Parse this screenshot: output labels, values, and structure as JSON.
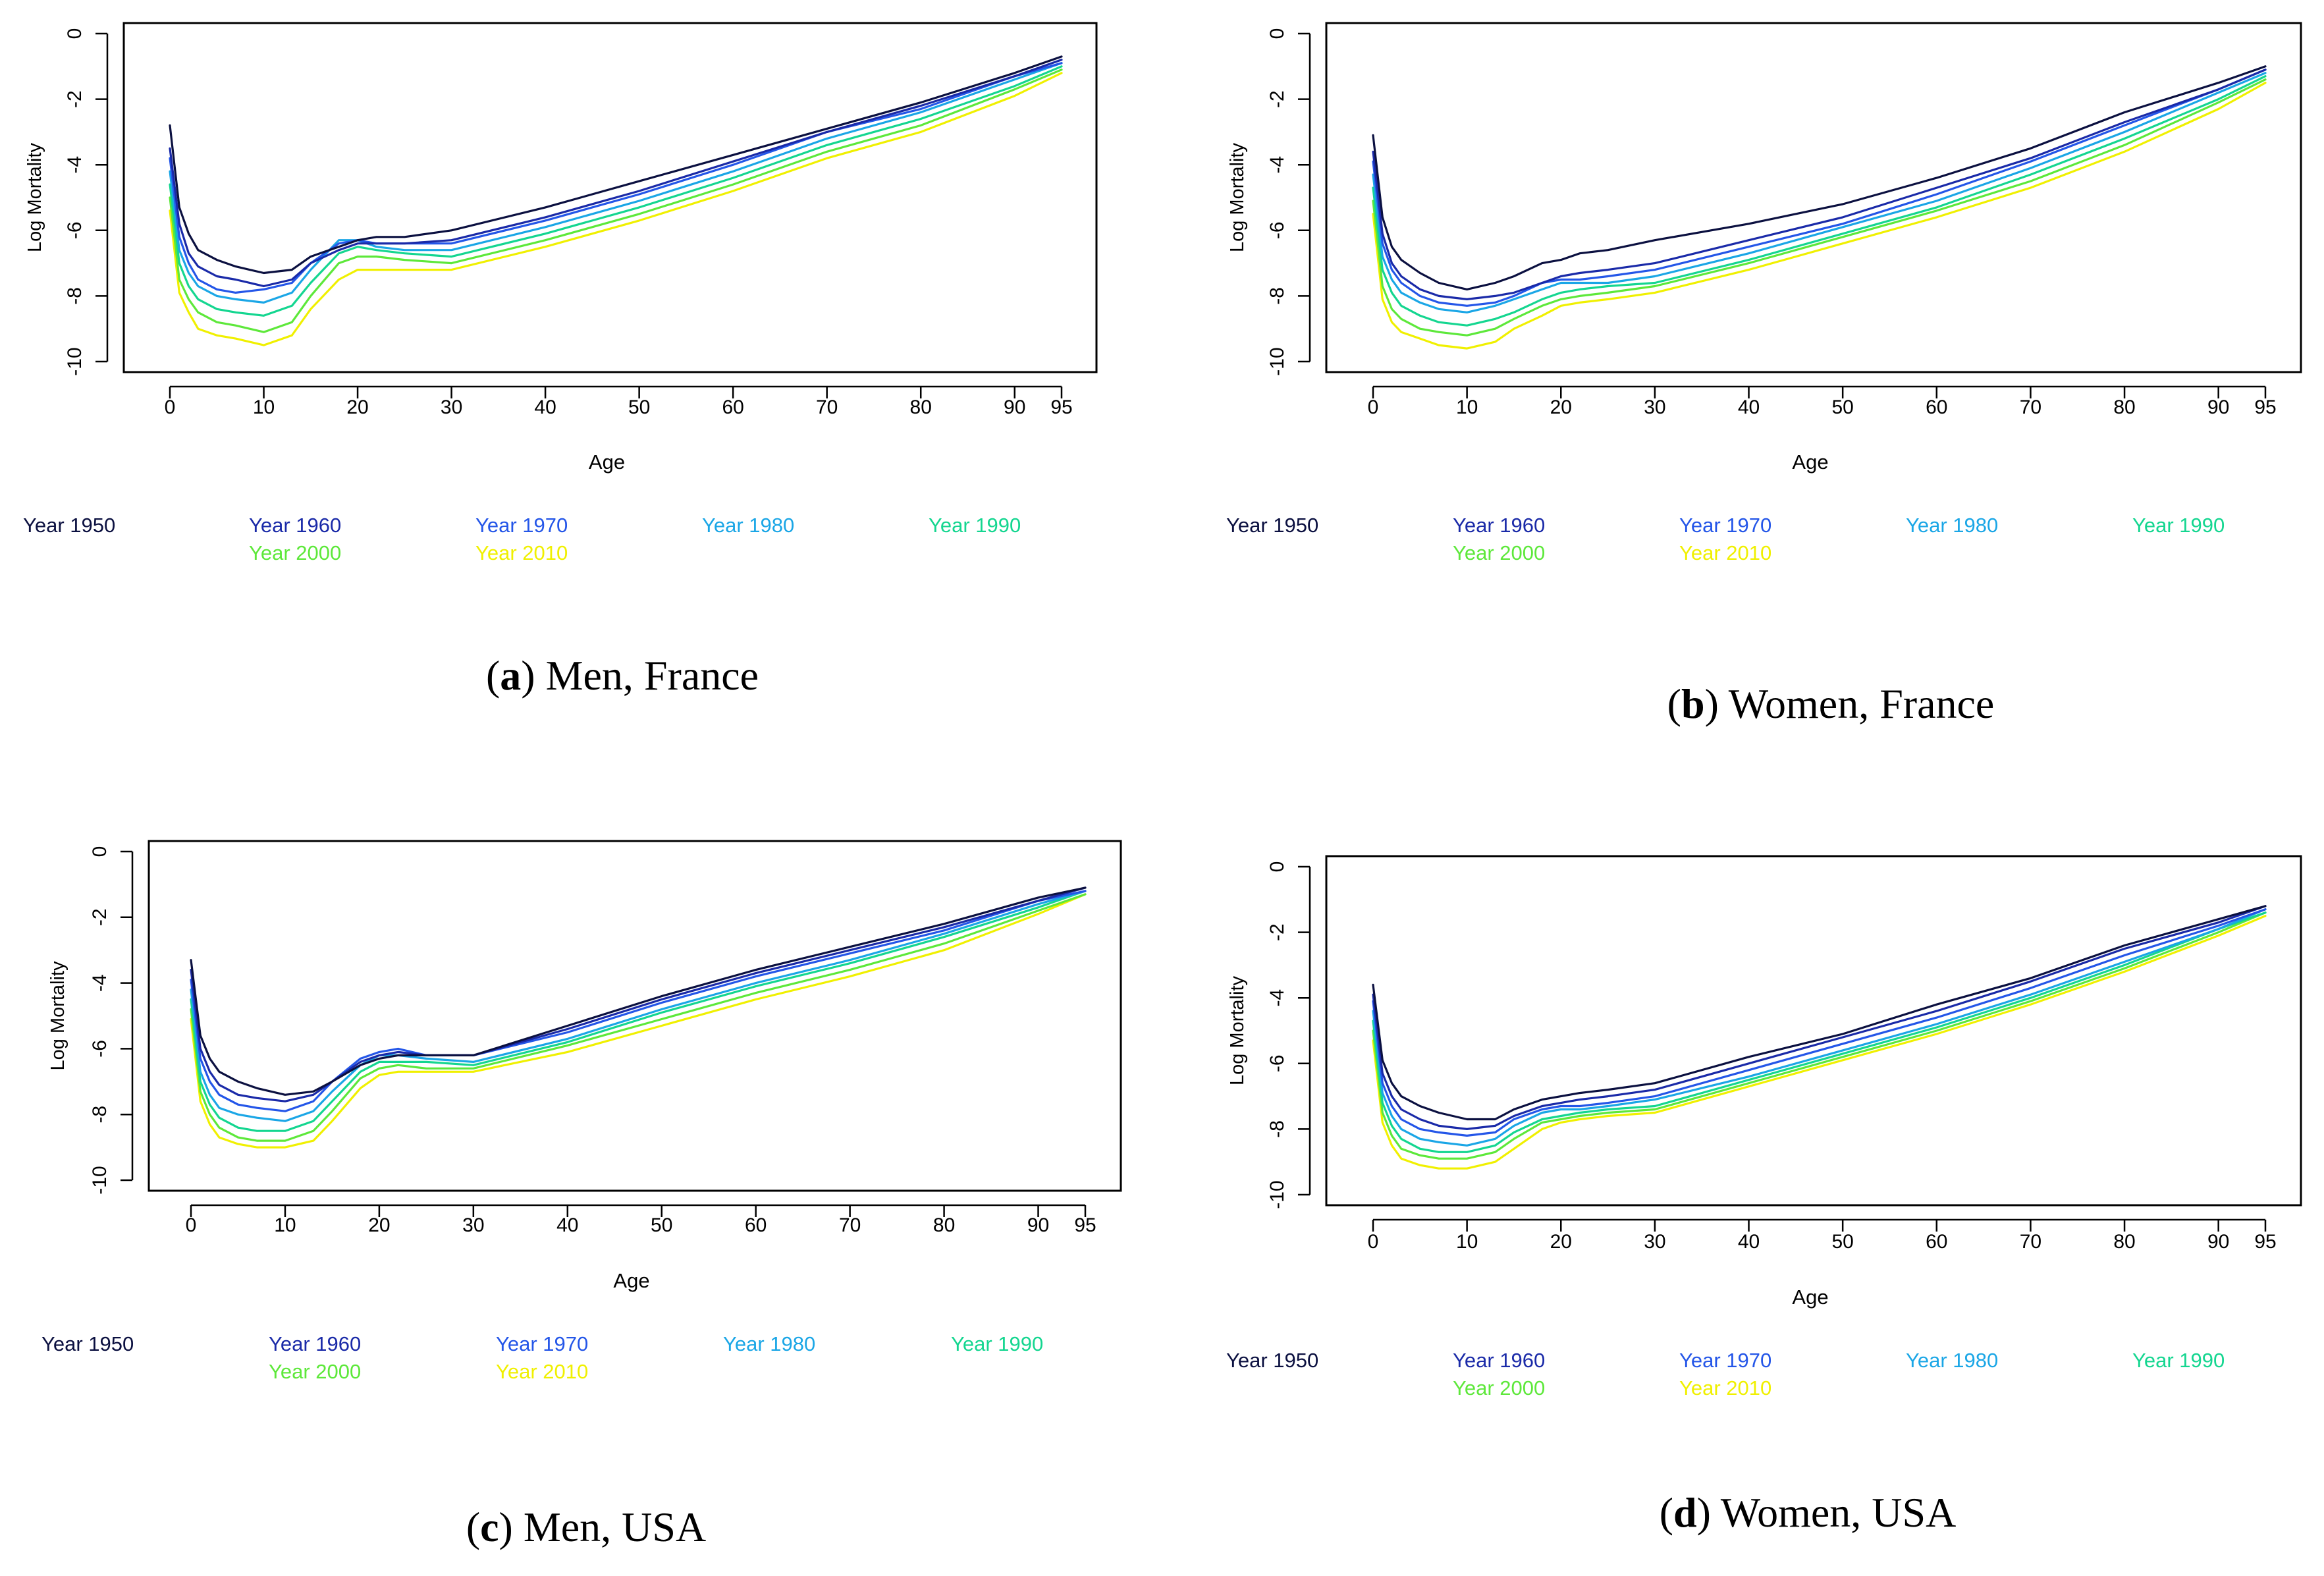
{
  "chart_data": [
    {
      "type": "line",
      "panel_letter": "a",
      "caption_text": "Men, France",
      "xlabel": "Age",
      "ylabel": "Log Mortality",
      "xlim": [
        0,
        95
      ],
      "ylim": [
        -10,
        0
      ],
      "xticks": [
        0,
        10,
        20,
        30,
        40,
        50,
        60,
        70,
        80,
        90,
        95
      ],
      "yticks": [
        0,
        -2,
        -4,
        -6,
        -8,
        -10
      ],
      "legend_position": "bottom",
      "x": [
        0,
        1,
        2,
        3,
        5,
        7,
        10,
        13,
        15,
        18,
        20,
        22,
        25,
        30,
        40,
        50,
        60,
        70,
        80,
        90,
        95
      ],
      "series": [
        {
          "name": "Year 1950",
          "color": "#0b1040",
          "values": [
            -2.8,
            -5.3,
            -6.1,
            -6.6,
            -6.9,
            -7.1,
            -7.3,
            -7.2,
            -6.8,
            -6.5,
            -6.3,
            -6.2,
            -6.2,
            -6.0,
            -5.3,
            -4.5,
            -3.7,
            -2.9,
            -2.1,
            -1.2,
            -0.7
          ]
        },
        {
          "name": "Year 1960",
          "color": "#1a2aa8",
          "values": [
            -3.5,
            -5.8,
            -6.7,
            -7.1,
            -7.4,
            -7.5,
            -7.7,
            -7.5,
            -7.0,
            -6.6,
            -6.4,
            -6.4,
            -6.4,
            -6.3,
            -5.6,
            -4.8,
            -3.9,
            -3.0,
            -2.2,
            -1.3,
            -0.8
          ]
        },
        {
          "name": "Year 1970",
          "color": "#2456e8",
          "values": [
            -3.8,
            -6.2,
            -7.0,
            -7.5,
            -7.8,
            -7.9,
            -7.8,
            -7.6,
            -7.0,
            -6.4,
            -6.3,
            -6.4,
            -6.4,
            -6.4,
            -5.7,
            -4.9,
            -4.0,
            -3.0,
            -2.3,
            -1.3,
            -0.9
          ]
        },
        {
          "name": "Year 1980",
          "color": "#1aa6e6",
          "values": [
            -4.2,
            -6.6,
            -7.3,
            -7.7,
            -8.0,
            -8.1,
            -8.2,
            -7.9,
            -7.2,
            -6.3,
            -6.3,
            -6.5,
            -6.6,
            -6.6,
            -5.9,
            -5.1,
            -4.2,
            -3.2,
            -2.4,
            -1.4,
            -0.9
          ]
        },
        {
          "name": "Year 1990",
          "color": "#14d690",
          "values": [
            -4.6,
            -7.0,
            -7.7,
            -8.1,
            -8.4,
            -8.5,
            -8.6,
            -8.3,
            -7.6,
            -6.7,
            -6.5,
            -6.6,
            -6.7,
            -6.8,
            -6.1,
            -5.3,
            -4.4,
            -3.4,
            -2.6,
            -1.6,
            -1.0
          ]
        },
        {
          "name": "Year 2000",
          "color": "#5de83a",
          "values": [
            -5.0,
            -7.5,
            -8.1,
            -8.5,
            -8.8,
            -8.9,
            -9.1,
            -8.8,
            -8.0,
            -7.0,
            -6.8,
            -6.8,
            -6.9,
            -7.0,
            -6.3,
            -5.5,
            -4.6,
            -3.6,
            -2.8,
            -1.7,
            -1.1
          ]
        },
        {
          "name": "Year 2010",
          "color": "#f0f000",
          "values": [
            -5.4,
            -7.9,
            -8.5,
            -9.0,
            -9.2,
            -9.3,
            -9.5,
            -9.2,
            -8.4,
            -7.5,
            -7.2,
            -7.2,
            -7.2,
            -7.2,
            -6.5,
            -5.7,
            -4.8,
            -3.8,
            -3.0,
            -1.9,
            -1.2
          ]
        }
      ]
    },
    {
      "type": "line",
      "panel_letter": "b",
      "caption_text": "Women, France",
      "xlabel": "Age",
      "ylabel": "Log Mortality",
      "xlim": [
        0,
        95
      ],
      "ylim": [
        -10,
        0
      ],
      "xticks": [
        0,
        10,
        20,
        30,
        40,
        50,
        60,
        70,
        80,
        90,
        95
      ],
      "yticks": [
        0,
        -2,
        -4,
        -6,
        -8,
        -10
      ],
      "legend_position": "bottom",
      "x": [
        0,
        1,
        2,
        3,
        5,
        7,
        10,
        13,
        15,
        18,
        20,
        22,
        25,
        30,
        40,
        50,
        60,
        70,
        80,
        90,
        95
      ],
      "series": [
        {
          "name": "Year 1950",
          "color": "#0b1040",
          "values": [
            -3.1,
            -5.6,
            -6.5,
            -6.9,
            -7.3,
            -7.6,
            -7.8,
            -7.6,
            -7.4,
            -7.0,
            -6.9,
            -6.7,
            -6.6,
            -6.3,
            -5.8,
            -5.2,
            -4.4,
            -3.5,
            -2.4,
            -1.5,
            -1.0
          ]
        },
        {
          "name": "Year 1960",
          "color": "#1a2aa8",
          "values": [
            -3.6,
            -6.1,
            -7.0,
            -7.4,
            -7.8,
            -8.0,
            -8.1,
            -8.0,
            -7.9,
            -7.6,
            -7.4,
            -7.3,
            -7.2,
            -7.0,
            -6.3,
            -5.6,
            -4.7,
            -3.8,
            -2.7,
            -1.7,
            -1.1
          ]
        },
        {
          "name": "Year 1970",
          "color": "#2456e8",
          "values": [
            -3.9,
            -6.4,
            -7.2,
            -7.6,
            -8.0,
            -8.2,
            -8.3,
            -8.2,
            -8.0,
            -7.6,
            -7.5,
            -7.5,
            -7.4,
            -7.2,
            -6.5,
            -5.8,
            -4.9,
            -3.9,
            -2.8,
            -1.7,
            -1.1
          ]
        },
        {
          "name": "Year 1980",
          "color": "#1aa6e6",
          "values": [
            -4.3,
            -6.8,
            -7.5,
            -7.9,
            -8.2,
            -8.4,
            -8.5,
            -8.3,
            -8.1,
            -7.8,
            -7.6,
            -7.6,
            -7.6,
            -7.4,
            -6.7,
            -5.9,
            -5.1,
            -4.1,
            -3.0,
            -1.8,
            -1.2
          ]
        },
        {
          "name": "Year 1990",
          "color": "#14d690",
          "values": [
            -4.7,
            -7.2,
            -7.9,
            -8.3,
            -8.6,
            -8.8,
            -8.9,
            -8.7,
            -8.5,
            -8.1,
            -7.9,
            -7.8,
            -7.7,
            -7.6,
            -6.9,
            -6.1,
            -5.3,
            -4.3,
            -3.2,
            -2.0,
            -1.3
          ]
        },
        {
          "name": "Year 2000",
          "color": "#5de83a",
          "values": [
            -5.1,
            -7.7,
            -8.4,
            -8.7,
            -9.0,
            -9.1,
            -9.2,
            -9.0,
            -8.7,
            -8.3,
            -8.1,
            -8.0,
            -7.9,
            -7.7,
            -7.0,
            -6.2,
            -5.4,
            -4.5,
            -3.4,
            -2.1,
            -1.4
          ]
        },
        {
          "name": "Year 2010",
          "color": "#f0f000",
          "values": [
            -5.5,
            -8.1,
            -8.8,
            -9.1,
            -9.3,
            -9.5,
            -9.6,
            -9.4,
            -9.0,
            -8.6,
            -8.3,
            -8.2,
            -8.1,
            -7.9,
            -7.2,
            -6.4,
            -5.6,
            -4.7,
            -3.6,
            -2.3,
            -1.5
          ]
        }
      ]
    },
    {
      "type": "line",
      "panel_letter": "c",
      "caption_text": "Men, USA",
      "xlabel": "Age",
      "ylabel": "Log Mortality",
      "xlim": [
        0,
        95
      ],
      "ylim": [
        -10,
        0
      ],
      "xticks": [
        0,
        10,
        20,
        30,
        40,
        50,
        60,
        70,
        80,
        90,
        95
      ],
      "yticks": [
        0,
        -2,
        -4,
        -6,
        -8,
        -10
      ],
      "legend_position": "bottom",
      "x": [
        0,
        1,
        2,
        3,
        5,
        7,
        10,
        13,
        15,
        18,
        20,
        22,
        25,
        30,
        40,
        50,
        60,
        70,
        80,
        90,
        95
      ],
      "series": [
        {
          "name": "Year 1950",
          "color": "#0b1040",
          "values": [
            -3.3,
            -5.6,
            -6.3,
            -6.7,
            -7.0,
            -7.2,
            -7.4,
            -7.3,
            -7.0,
            -6.5,
            -6.3,
            -6.2,
            -6.2,
            -6.2,
            -5.3,
            -4.4,
            -3.6,
            -2.9,
            -2.2,
            -1.4,
            -1.1
          ]
        },
        {
          "name": "Year 1960",
          "color": "#1a2aa8",
          "values": [
            -3.6,
            -6.0,
            -6.7,
            -7.1,
            -7.4,
            -7.5,
            -7.6,
            -7.4,
            -7.0,
            -6.4,
            -6.2,
            -6.1,
            -6.2,
            -6.2,
            -5.4,
            -4.5,
            -3.7,
            -3.0,
            -2.3,
            -1.5,
            -1.1
          ]
        },
        {
          "name": "Year 1970",
          "color": "#2456e8",
          "values": [
            -3.9,
            -6.3,
            -7.0,
            -7.4,
            -7.7,
            -7.8,
            -7.9,
            -7.6,
            -7.0,
            -6.3,
            -6.1,
            -6.0,
            -6.2,
            -6.2,
            -5.5,
            -4.6,
            -3.8,
            -3.1,
            -2.4,
            -1.5,
            -1.2
          ]
        },
        {
          "name": "Year 1980",
          "color": "#1aa6e6",
          "values": [
            -4.2,
            -6.7,
            -7.4,
            -7.8,
            -8.0,
            -8.1,
            -8.2,
            -7.9,
            -7.3,
            -6.5,
            -6.2,
            -6.2,
            -6.3,
            -6.4,
            -5.7,
            -4.8,
            -4.0,
            -3.3,
            -2.5,
            -1.6,
            -1.2
          ]
        },
        {
          "name": "Year 1990",
          "color": "#14d690",
          "values": [
            -4.5,
            -7.0,
            -7.7,
            -8.1,
            -8.4,
            -8.5,
            -8.5,
            -8.2,
            -7.6,
            -6.7,
            -6.4,
            -6.4,
            -6.4,
            -6.5,
            -5.8,
            -4.9,
            -4.1,
            -3.4,
            -2.6,
            -1.7,
            -1.2
          ]
        },
        {
          "name": "Year 2000",
          "color": "#5de83a",
          "values": [
            -4.8,
            -7.3,
            -8.0,
            -8.4,
            -8.7,
            -8.8,
            -8.8,
            -8.5,
            -7.9,
            -6.9,
            -6.6,
            -6.5,
            -6.6,
            -6.6,
            -5.9,
            -5.1,
            -4.3,
            -3.6,
            -2.8,
            -1.8,
            -1.3
          ]
        },
        {
          "name": "Year 2010",
          "color": "#f0f000",
          "values": [
            -5.1,
            -7.6,
            -8.3,
            -8.7,
            -8.9,
            -9.0,
            -9.0,
            -8.8,
            -8.2,
            -7.2,
            -6.8,
            -6.7,
            -6.7,
            -6.7,
            -6.1,
            -5.3,
            -4.5,
            -3.8,
            -3.0,
            -1.9,
            -1.3
          ]
        }
      ]
    },
    {
      "type": "line",
      "panel_letter": "d",
      "caption_text": "Women, USA",
      "xlabel": "Age",
      "ylabel": "Log Mortality",
      "xlim": [
        0,
        95
      ],
      "ylim": [
        -10,
        0
      ],
      "xticks": [
        0,
        10,
        20,
        30,
        40,
        50,
        60,
        70,
        80,
        90,
        95
      ],
      "yticks": [
        0,
        -2,
        -4,
        -6,
        -8,
        -10
      ],
      "legend_position": "bottom",
      "x": [
        0,
        1,
        2,
        3,
        5,
        7,
        10,
        13,
        15,
        18,
        20,
        22,
        25,
        30,
        40,
        50,
        60,
        70,
        80,
        90,
        95
      ],
      "series": [
        {
          "name": "Year 1950",
          "color": "#0b1040",
          "values": [
            -3.6,
            -5.9,
            -6.6,
            -7.0,
            -7.3,
            -7.5,
            -7.7,
            -7.7,
            -7.4,
            -7.1,
            -7.0,
            -6.9,
            -6.8,
            -6.6,
            -5.8,
            -5.1,
            -4.2,
            -3.4,
            -2.4,
            -1.6,
            -1.2
          ]
        },
        {
          "name": "Year 1960",
          "color": "#1a2aa8",
          "values": [
            -3.9,
            -6.3,
            -7.0,
            -7.4,
            -7.7,
            -7.9,
            -8.0,
            -7.9,
            -7.6,
            -7.3,
            -7.2,
            -7.1,
            -7.0,
            -6.8,
            -6.0,
            -5.2,
            -4.4,
            -3.5,
            -2.5,
            -1.7,
            -1.2
          ]
        },
        {
          "name": "Year 1970",
          "color": "#2456e8",
          "values": [
            -4.1,
            -6.6,
            -7.3,
            -7.7,
            -8.0,
            -8.1,
            -8.2,
            -8.1,
            -7.7,
            -7.4,
            -7.3,
            -7.3,
            -7.2,
            -7.0,
            -6.2,
            -5.4,
            -4.6,
            -3.7,
            -2.7,
            -1.8,
            -1.3
          ]
        },
        {
          "name": "Year 1980",
          "color": "#1aa6e6",
          "values": [
            -4.4,
            -6.9,
            -7.6,
            -8.0,
            -8.3,
            -8.4,
            -8.5,
            -8.3,
            -7.9,
            -7.5,
            -7.4,
            -7.4,
            -7.3,
            -7.1,
            -6.4,
            -5.6,
            -4.8,
            -3.9,
            -2.9,
            -1.9,
            -1.3
          ]
        },
        {
          "name": "Year 1990",
          "color": "#14d690",
          "values": [
            -4.7,
            -7.2,
            -7.9,
            -8.3,
            -8.6,
            -8.7,
            -8.7,
            -8.5,
            -8.1,
            -7.7,
            -7.6,
            -7.5,
            -7.4,
            -7.3,
            -6.5,
            -5.7,
            -4.9,
            -4.0,
            -3.0,
            -1.9,
            -1.4
          ]
        },
        {
          "name": "Year 2000",
          "color": "#5de83a",
          "values": [
            -5.0,
            -7.5,
            -8.2,
            -8.6,
            -8.8,
            -8.9,
            -8.9,
            -8.7,
            -8.3,
            -7.8,
            -7.7,
            -7.6,
            -7.5,
            -7.4,
            -6.6,
            -5.8,
            -5.0,
            -4.1,
            -3.1,
            -2.0,
            -1.4
          ]
        },
        {
          "name": "Year 2010",
          "color": "#f0f000",
          "values": [
            -5.3,
            -7.8,
            -8.5,
            -8.9,
            -9.1,
            -9.2,
            -9.2,
            -9.0,
            -8.6,
            -8.0,
            -7.8,
            -7.7,
            -7.6,
            -7.5,
            -6.7,
            -5.9,
            -5.1,
            -4.2,
            -3.2,
            -2.1,
            -1.5
          ]
        }
      ]
    }
  ]
}
